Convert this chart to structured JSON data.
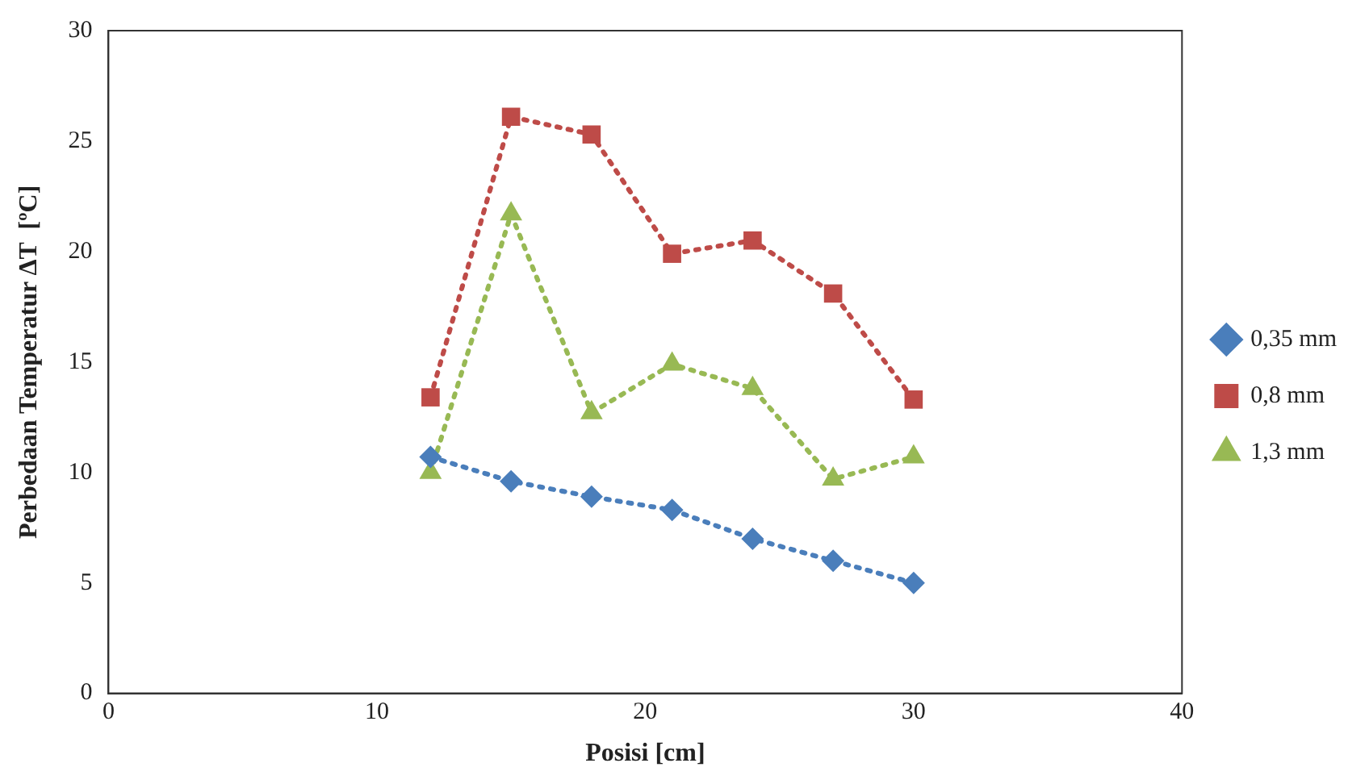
{
  "chart_data": {
    "type": "line",
    "xlabel": "Posisi [cm]",
    "ylabel": "Perbedaan Temperatur ΔT  [ºC]",
    "x": [
      12,
      15,
      18,
      21,
      24,
      27,
      30
    ],
    "xlim": [
      0,
      40
    ],
    "xticks": [
      0,
      10,
      20,
      30,
      40
    ],
    "ylim": [
      0,
      30
    ],
    "yticks": [
      0,
      5,
      10,
      15,
      20,
      25,
      30
    ],
    "grid": false,
    "legend": "right",
    "line_style": "dotted",
    "series": [
      {
        "name": "0,35 mm",
        "color": "#4a7ebb",
        "marker": "diamond",
        "values": [
          10.7,
          9.6,
          8.9,
          8.3,
          7.0,
          6.0,
          5.0
        ]
      },
      {
        "name": "0,8 mm",
        "color": "#be4b48",
        "marker": "square",
        "values": [
          13.4,
          26.1,
          25.3,
          19.9,
          20.5,
          18.1,
          13.3
        ]
      },
      {
        "name": "1,3 mm",
        "color": "#98b954",
        "marker": "triangle",
        "values": [
          10.0,
          21.7,
          12.7,
          14.9,
          13.8,
          9.7,
          10.7
        ]
      }
    ]
  }
}
